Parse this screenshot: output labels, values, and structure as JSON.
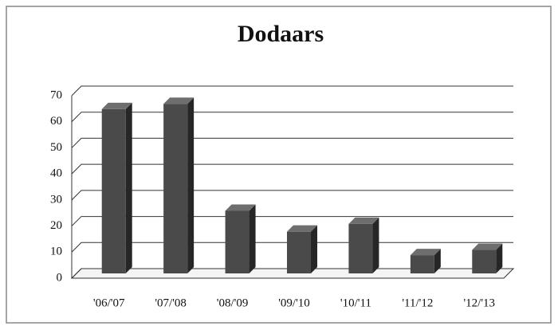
{
  "chart_data": {
    "type": "bar3d",
    "title": "Dodaars",
    "categories": [
      "'06/'07",
      "'07/'08",
      "'08/'09",
      "'09/'10",
      "'10/'11",
      "'11/'12",
      "'12/'13"
    ],
    "values": [
      63,
      65,
      24,
      16,
      19,
      7,
      9
    ],
    "color": "#4a4a4a",
    "ylim": [
      0,
      70
    ],
    "yticks": [
      0,
      10,
      20,
      30,
      40,
      50,
      60,
      70
    ],
    "grid": true
  }
}
